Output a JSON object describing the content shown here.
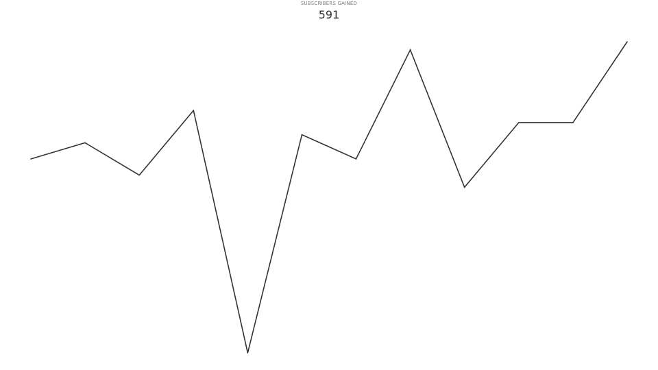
{
  "kpi": {
    "label": "SUBSCRIBERS GAINED",
    "value": "591"
  },
  "colors": {
    "line": "#333333",
    "background": "#ffffff"
  },
  "chart_data": {
    "type": "line",
    "title": "SUBSCRIBERS GAINED",
    "xlabel": "",
    "ylabel": "",
    "grid": false,
    "legend": "none",
    "series": [
      {
        "values": [
          48,
          52,
          44,
          60,
          0,
          54,
          48,
          75,
          41,
          57,
          57,
          77
        ]
      }
    ],
    "ylim": [
      0,
      77
    ]
  }
}
